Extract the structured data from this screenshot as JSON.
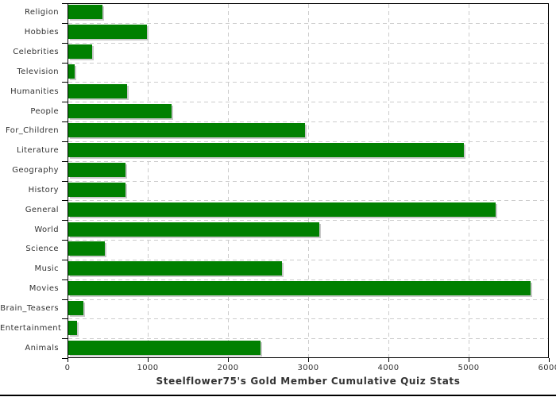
{
  "chart_data": {
    "type": "bar",
    "orientation": "horizontal",
    "title": "Steelflower75's Gold Member Cumulative Quiz Stats",
    "categories": [
      "Religion",
      "Hobbies",
      "Celebrities",
      "Television",
      "Humanities",
      "People",
      "For_Children",
      "Literature",
      "Geography",
      "History",
      "General",
      "World",
      "Science",
      "Music",
      "Movies",
      "Brain_Teasers",
      "Entertainment",
      "Animals"
    ],
    "values": [
      430,
      980,
      300,
      75,
      735,
      1290,
      2950,
      4930,
      715,
      715,
      5330,
      3130,
      460,
      2660,
      5760,
      190,
      110,
      2400
    ],
    "xlabel": "",
    "ylabel": "",
    "xlim": [
      0,
      6000
    ],
    "x_ticks": [
      0,
      1000,
      2000,
      3000,
      4000,
      5000,
      6000
    ],
    "grid": true,
    "legend": false,
    "colors": {
      "bar": "#008000",
      "bar_shadow": "#c9c9c9",
      "gridline": "#cccccc",
      "axis": "#000000",
      "text": "#333333",
      "background": "#ffffff"
    }
  },
  "layout_labels": {
    "bottom_border": "bottom-border-line"
  }
}
